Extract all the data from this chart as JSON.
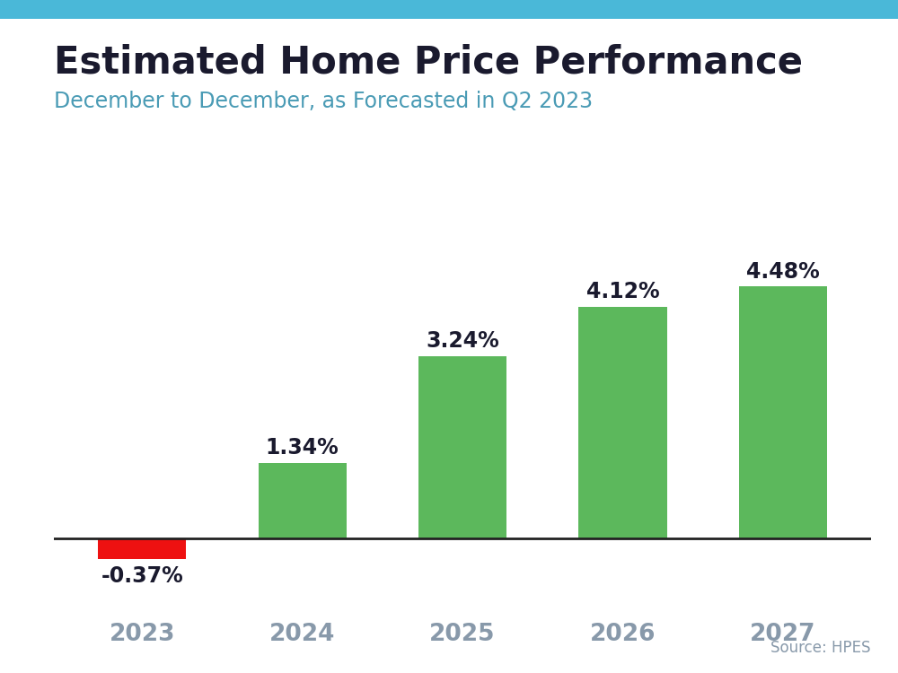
{
  "title": "Estimated Home Price Performance",
  "subtitle": "December to December, as Forecasted in Q2 2023",
  "source": "Source: HPES",
  "categories": [
    "2023",
    "2024",
    "2025",
    "2026",
    "2027"
  ],
  "values": [
    -0.37,
    1.34,
    3.24,
    4.12,
    4.48
  ],
  "labels": [
    "-0.37%",
    "1.34%",
    "3.24%",
    "4.12%",
    "4.48%"
  ],
  "bar_colors": [
    "#ee1111",
    "#5cb85c",
    "#5cb85c",
    "#5cb85c",
    "#5cb85c"
  ],
  "title_color": "#1a1a2e",
  "subtitle_color": "#4a9bb5",
  "tick_color": "#8899aa",
  "label_color": "#1a1a2e",
  "source_color": "#8899aa",
  "top_stripe_color": "#4ab8d8",
  "background_color": "#ffffff",
  "ylim": [
    -1.2,
    5.5
  ],
  "title_fontsize": 30,
  "subtitle_fontsize": 17,
  "label_fontsize": 17,
  "tick_fontsize": 19,
  "source_fontsize": 12
}
